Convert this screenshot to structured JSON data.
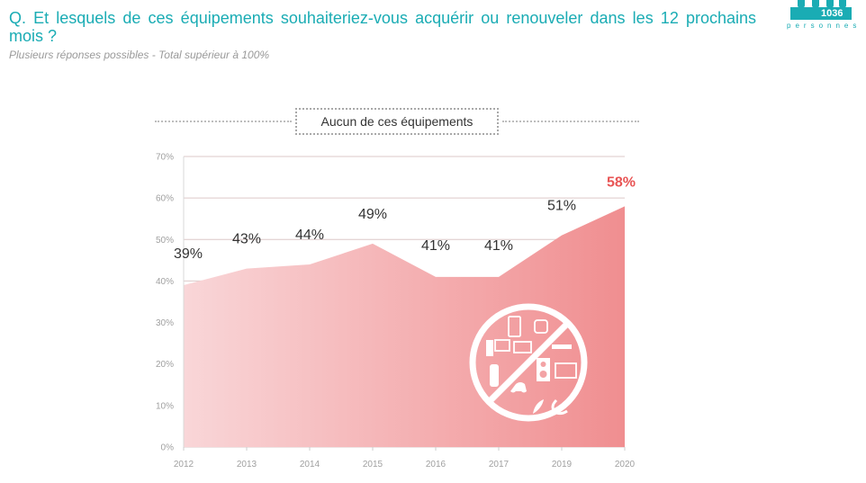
{
  "header": {
    "question": "Q. Et lesquels de ces équipements souhaiteriez-vous acquérir ou renouveler dans les 12 prochains mois ?",
    "subtitle": "Plusieurs réponses possibles - Total supérieur à 100%"
  },
  "badge": {
    "count": "1036",
    "label": "personnes",
    "color": "#1aacb4"
  },
  "colors": {
    "area_start": "#f9d6d8",
    "area_end": "#f08e90",
    "highlight": "#e85454",
    "label": "#333333"
  },
  "chart_data": {
    "type": "area",
    "title": "Aucun de ces équipements",
    "xlabel": "",
    "ylabel": "",
    "categories": [
      "2012",
      "2013",
      "2014",
      "2015",
      "2016",
      "2017",
      "2019",
      "2020"
    ],
    "series": [
      {
        "name": "Aucun de ces équipements",
        "values": [
          39,
          43,
          44,
          49,
          41,
          41,
          51,
          58
        ],
        "data_labels": [
          "39%",
          "43%",
          "44%",
          "49%",
          "41%",
          "41%",
          "51%",
          "58%"
        ]
      }
    ],
    "highlight_index": 7,
    "ylim": [
      0,
      70
    ],
    "yticks": [
      0,
      10,
      20,
      30,
      40,
      50,
      60,
      70
    ],
    "ytick_labels": [
      "0%",
      "10%",
      "20%",
      "30%",
      "40%",
      "50%",
      "60%",
      "70%"
    ],
    "grid": true,
    "legend": "top-center",
    "annotation_icon": "no-devices-icon"
  }
}
